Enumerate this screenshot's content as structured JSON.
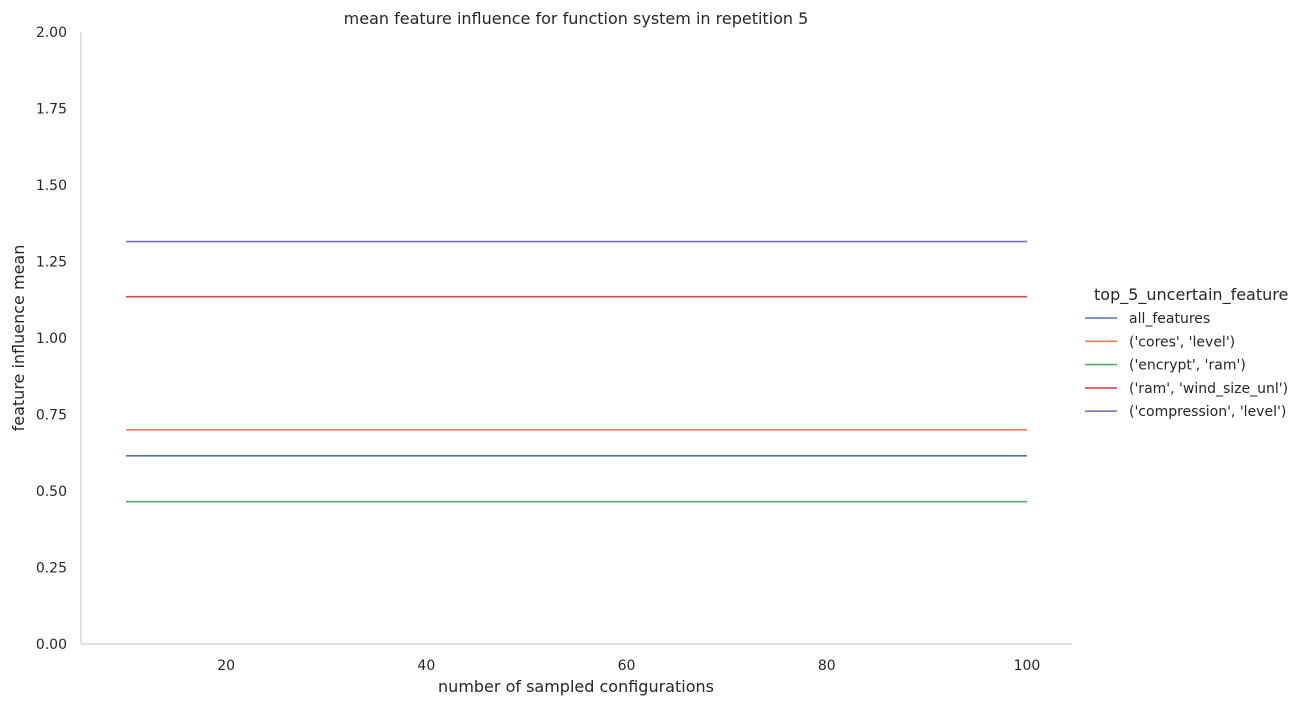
{
  "chart_data": {
    "type": "line",
    "title": "mean feature influence for function system in repetition 5",
    "xlabel": "number of sampled configurations",
    "ylabel": "feature influence mean",
    "xlim": [
      5.5,
      104.5
    ],
    "ylim": [
      0,
      2
    ],
    "x_ticks": [
      20,
      40,
      60,
      80,
      100
    ],
    "y_ticks": [
      0.0,
      0.25,
      0.5,
      0.75,
      1.0,
      1.25,
      1.5,
      1.75,
      2.0
    ],
    "y_tick_labels": [
      "0.00",
      "0.25",
      "0.50",
      "0.75",
      "1.00",
      "1.25",
      "1.50",
      "1.75",
      "2.00"
    ],
    "x_tick_labels": [
      "20",
      "40",
      "60",
      "80",
      "100"
    ],
    "grid": false,
    "legend_placement": "right",
    "legend_title": "top_5_uncertain_feature",
    "x": [
      10,
      100
    ],
    "series": [
      {
        "name": "all_features",
        "color": "#4c72b0",
        "values": [
          0.615,
          0.615
        ]
      },
      {
        "name": "('cores', 'level')",
        "color": "#dd8452",
        "values": [
          0.7,
          0.7
        ]
      },
      {
        "name": "('encrypt', 'ram')",
        "color": "#55a868",
        "values": [
          0.465,
          0.465
        ]
      },
      {
        "name": "('ram', 'wind_size_unl')",
        "color": "#c44e52",
        "values": [
          1.135,
          1.135
        ]
      },
      {
        "name": "('compression', 'level')",
        "color": "#8172b3",
        "values": [
          1.315,
          1.315
        ]
      }
    ]
  }
}
